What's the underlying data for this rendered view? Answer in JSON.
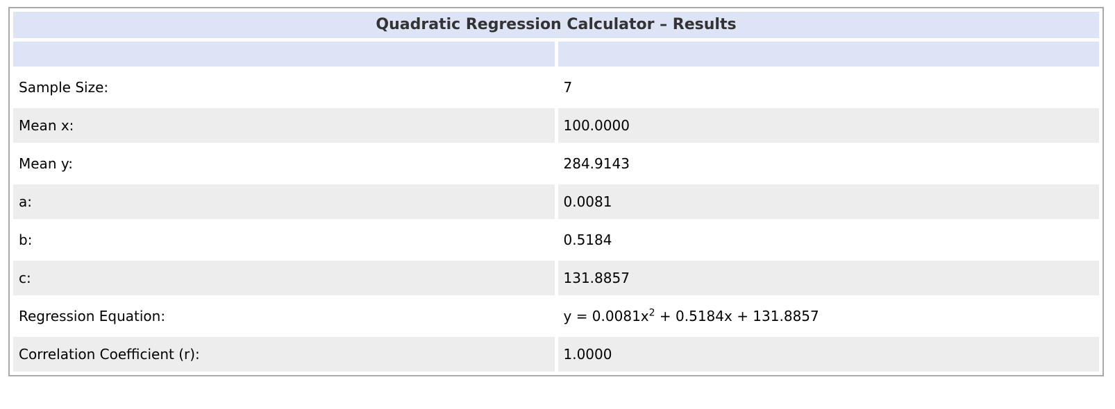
{
  "title": "Quadratic Regression Calculator – Results",
  "colors": {
    "header_bg": "#dde4f6",
    "row_alt_bg": "#ededed",
    "row_bg": "#ffffff",
    "border": "#a9a9a9",
    "title_text": "#333333",
    "body_text": "#000000"
  },
  "results": {
    "rows": [
      {
        "label": "Sample Size:",
        "value": "7"
      },
      {
        "label": "Mean x:",
        "value": "100.0000"
      },
      {
        "label": "Mean y:",
        "value": "284.9143"
      },
      {
        "label": "a:",
        "value": "0.0081"
      },
      {
        "label": "b:",
        "value": "0.5184"
      },
      {
        "label": "c:",
        "value": "131.8857"
      },
      {
        "label": "Regression Equation:",
        "value_base": "y = 0.0081x",
        "value_sup": "2",
        "value_rest": " + 0.5184x + 131.8857"
      },
      {
        "label": "Correlation Coefficient (r):",
        "value": "1.0000"
      }
    ]
  }
}
